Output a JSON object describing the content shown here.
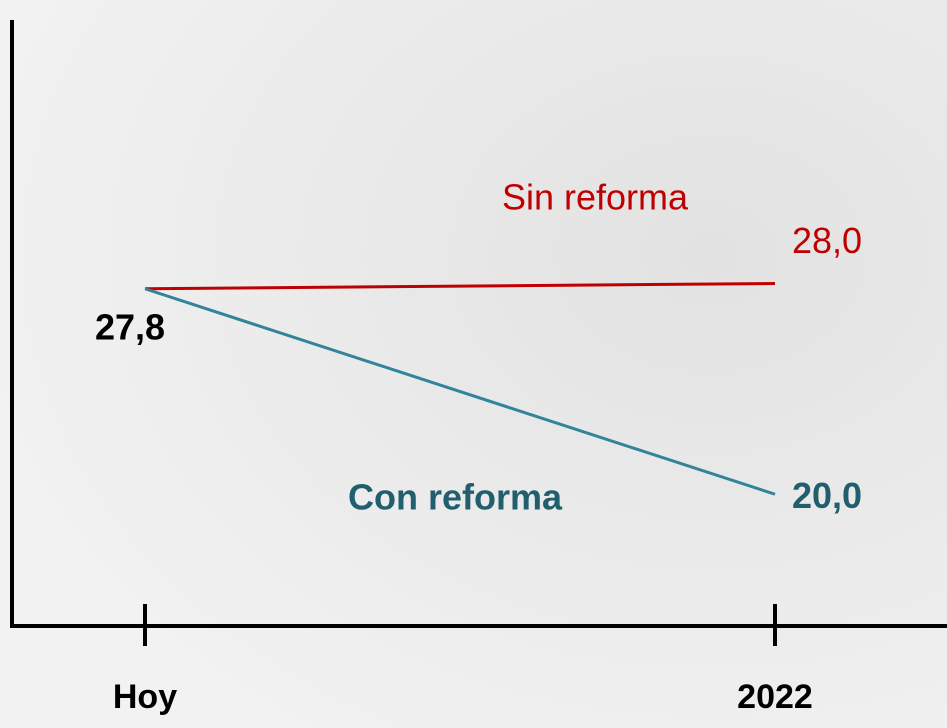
{
  "chart_data": {
    "type": "line",
    "categories": [
      "Hoy",
      "2022"
    ],
    "series": [
      {
        "name": "Sin reforma",
        "color": "#c00000",
        "values": [
          27.8,
          28.0
        ],
        "value_labels": [
          "27,8",
          "28,0"
        ]
      },
      {
        "name": "Con reforma",
        "color": "#31849b",
        "values": [
          27.8,
          20.0
        ],
        "value_labels": [
          null,
          "20,0"
        ]
      }
    ],
    "ylim": [
      15,
      38
    ]
  }
}
